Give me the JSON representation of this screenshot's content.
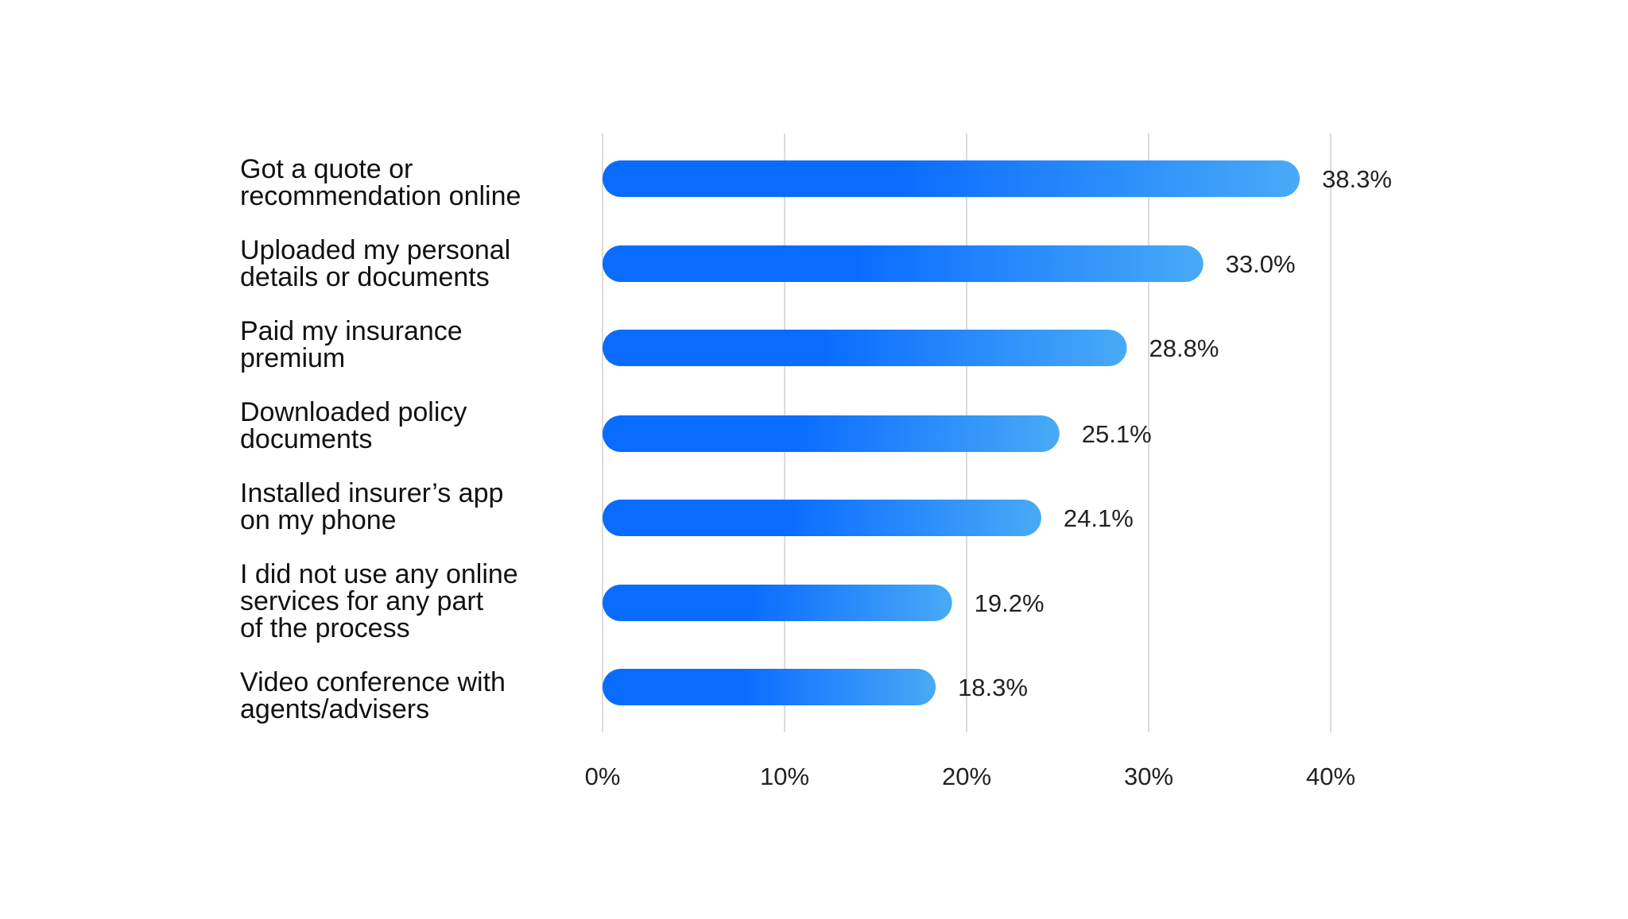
{
  "chart_data": {
    "type": "bar",
    "orientation": "horizontal",
    "categories": [
      "Got a quote or\nrecommendation online",
      "Uploaded my personal\ndetails or documents",
      "Paid my insurance\npremium",
      "Downloaded policy\ndocuments",
      "Installed insurer’s app\non my phone",
      "I did not use any online\nservices for any part\nof the process",
      "Video conference with\nagents/advisers"
    ],
    "values": [
      38.3,
      33.0,
      28.8,
      25.1,
      24.1,
      19.2,
      18.3
    ],
    "value_labels": [
      "38.3%",
      "33.0%",
      "28.8%",
      "25.1%",
      "24.1%",
      "19.2%",
      "18.3%"
    ],
    "x_ticks": [
      0,
      10,
      20,
      30,
      40
    ],
    "x_tick_labels": [
      "0%",
      "10%",
      "20%",
      "30%",
      "40%"
    ],
    "xlim": [
      0,
      40
    ],
    "grid": "vertical",
    "title": "",
    "xlabel": "",
    "ylabel": "",
    "colors": {
      "bar_start": "#0a6cff",
      "bar_end": "#48aaf6",
      "grid": "#cfcfcf",
      "text": "#111111",
      "value_text": "#222222"
    }
  }
}
